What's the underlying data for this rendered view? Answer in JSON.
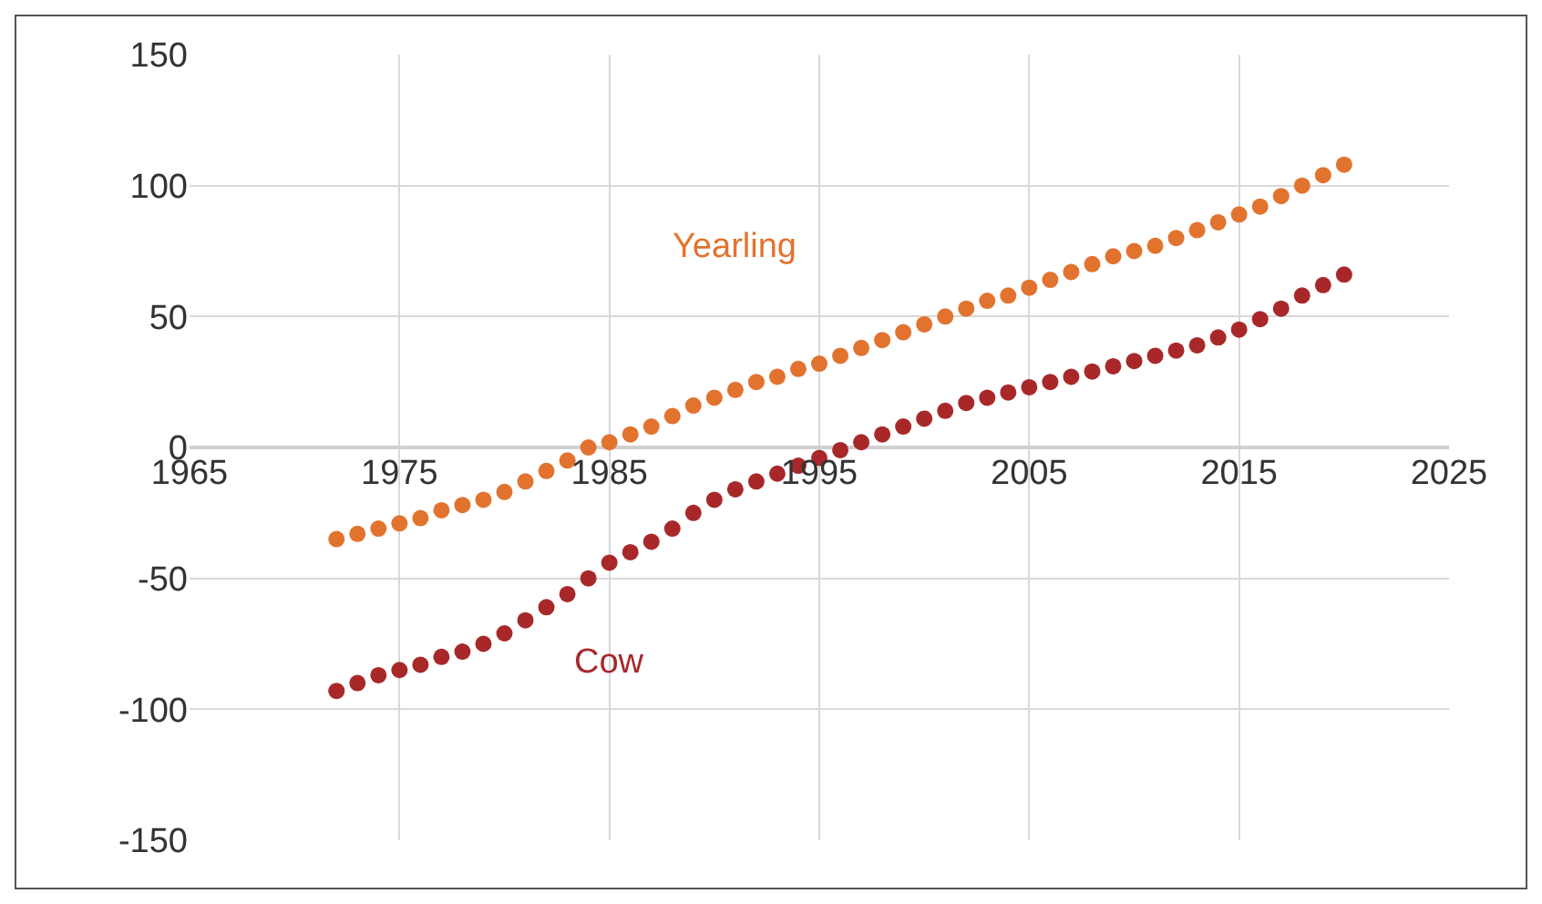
{
  "chart_data": {
    "type": "scatter",
    "marker": "circle",
    "grid": true,
    "legend": false,
    "x": [
      1972,
      1973,
      1974,
      1975,
      1976,
      1977,
      1978,
      1979,
      1980,
      1981,
      1982,
      1983,
      1984,
      1985,
      1986,
      1987,
      1988,
      1989,
      1990,
      1991,
      1992,
      1993,
      1994,
      1995,
      1996,
      1997,
      1998,
      1999,
      2000,
      2001,
      2002,
      2003,
      2004,
      2005,
      2006,
      2007,
      2008,
      2009,
      2010,
      2011,
      2012,
      2013,
      2014,
      2015,
      2016,
      2017,
      2018,
      2019,
      2020
    ],
    "series": [
      {
        "name": "Yearling",
        "color": "#e2732f",
        "values": [
          -35,
          -33,
          -31,
          -29,
          -27,
          -24,
          -22,
          -20,
          -17,
          -13,
          -9,
          -5,
          0,
          2,
          5,
          8,
          12,
          16,
          19,
          22,
          25,
          27,
          30,
          32,
          35,
          38,
          41,
          44,
          47,
          50,
          53,
          56,
          58,
          61,
          64,
          67,
          70,
          73,
          75,
          77,
          80,
          83,
          86,
          89,
          92,
          96,
          100,
          104,
          108
        ]
      },
      {
        "name": "Cow",
        "color": "#a8282a",
        "values": [
          -93,
          -90,
          -87,
          -85,
          -83,
          -80,
          -78,
          -75,
          -71,
          -66,
          -61,
          -56,
          -50,
          -44,
          -40,
          -36,
          -31,
          -25,
          -20,
          -16,
          -13,
          -10,
          -7,
          -4,
          -1,
          2,
          5,
          8,
          11,
          14,
          17,
          19,
          21,
          23,
          25,
          27,
          29,
          31,
          33,
          35,
          37,
          39,
          42,
          45,
          49,
          53,
          58,
          62,
          66
        ]
      }
    ],
    "xlim": [
      1965,
      2025
    ],
    "xticks": [
      1965,
      1975,
      1985,
      1995,
      2005,
      2015,
      2025
    ],
    "ylim": [
      -150,
      150
    ],
    "yticks": [
      -150,
      -100,
      -50,
      0,
      50,
      100,
      150
    ]
  }
}
